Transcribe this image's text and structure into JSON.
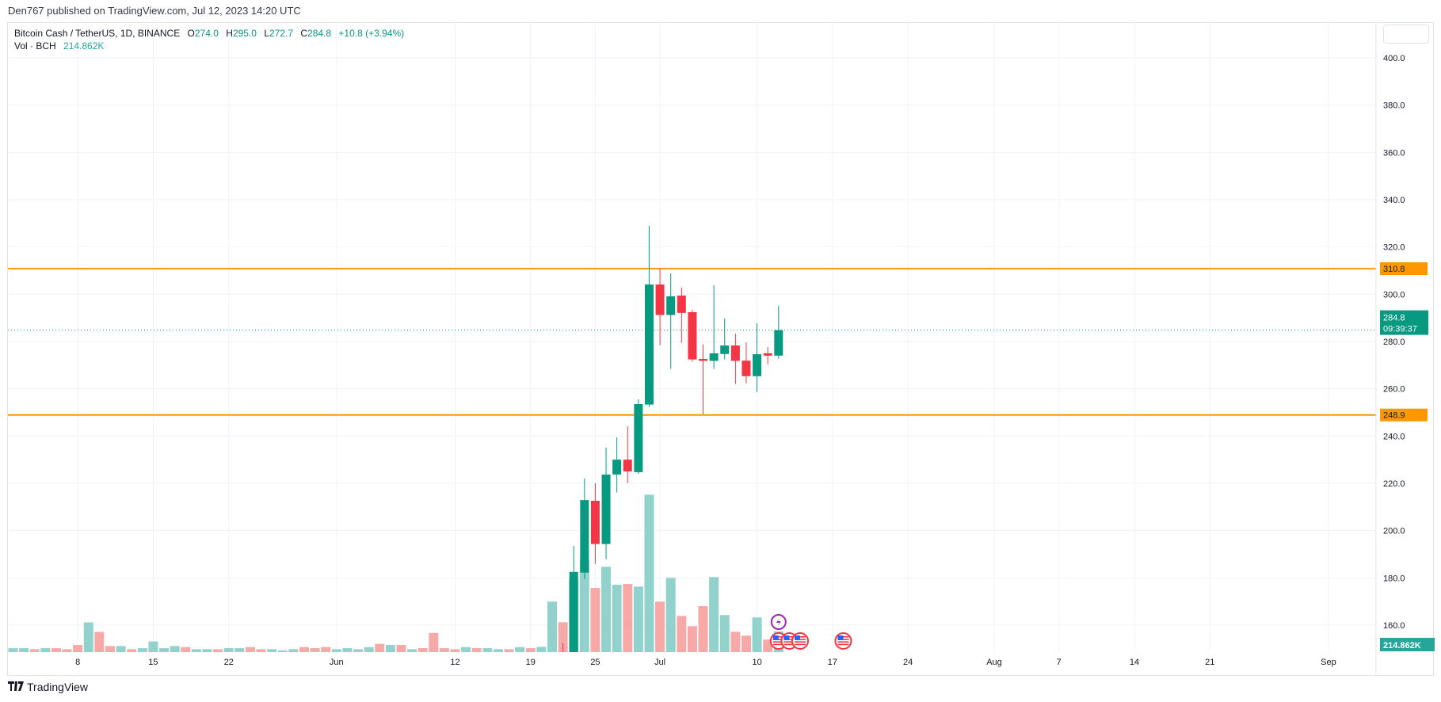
{
  "header": {
    "published": "Den767 published on TradingView.com, Jul 12, 2023 14:20 UTC"
  },
  "legend": {
    "symbol": "Bitcoin Cash / TetherUS, 1D, BINANCE",
    "open_label": "O",
    "open": "274.0",
    "high_label": "H",
    "high": "295.0",
    "low_label": "L",
    "low": "272.7",
    "close_label": "C",
    "close": "284.8",
    "change": "+10.8 (+3.94%)",
    "vol_label": "Vol · BCH",
    "vol_value": "214.862K"
  },
  "footer": {
    "logo_mark": "17",
    "brand": "TradingView"
  },
  "colors": {
    "up": "#089981",
    "down": "#f23645",
    "vol_up": "#92d2cc",
    "vol_down": "#f7a9a7",
    "level": "#ff9800",
    "grid": "#f0f3fa"
  },
  "chart_data": {
    "type": "candlestick",
    "title": "",
    "y_axis": {
      "min": 149,
      "max": 400,
      "ticks": [
        "400.0",
        "380.0",
        "360.0",
        "340.0",
        "320.0",
        "300.0",
        "280.0",
        "260.0",
        "240.0",
        "220.0",
        "200.0",
        "180.0",
        "160.0"
      ]
    },
    "x_axis": {
      "range": [
        "2023-05-02",
        "2023-09-05"
      ],
      "ticks": [
        {
          "d": "2023-05-08",
          "label": "8"
        },
        {
          "d": "2023-05-15",
          "label": "15"
        },
        {
          "d": "2023-05-22",
          "label": "22"
        },
        {
          "d": "2023-06-01",
          "label": "Jun"
        },
        {
          "d": "2023-06-12",
          "label": "12"
        },
        {
          "d": "2023-06-19",
          "label": "19"
        },
        {
          "d": "2023-06-25",
          "label": "25"
        },
        {
          "d": "2023-07-01",
          "label": "Jul"
        },
        {
          "d": "2023-07-10",
          "label": "10"
        },
        {
          "d": "2023-07-17",
          "label": "17"
        },
        {
          "d": "2023-07-24",
          "label": "24"
        },
        {
          "d": "2023-08-01",
          "label": "Aug"
        },
        {
          "d": "2023-08-07",
          "label": "7"
        },
        {
          "d": "2023-08-14",
          "label": "14"
        },
        {
          "d": "2023-08-21",
          "label": "21"
        },
        {
          "d": "2023-09-01",
          "label": "Sep"
        }
      ]
    },
    "grid": true,
    "levels": [
      {
        "price": 310.8,
        "label": "310.8"
      },
      {
        "price": 248.9,
        "label": "248.9"
      }
    ],
    "last_price": {
      "price": 284.8,
      "label": "284.8",
      "countdown": "09:39:37"
    },
    "volume_last_label": "214.862K",
    "candles": [
      {
        "d": "2023-06-22",
        "o": 148,
        "h": 152.4,
        "l": 138,
        "c": 141
      },
      {
        "d": "2023-06-23",
        "o": 145,
        "h": 193.5,
        "l": 141,
        "c": 182.5
      },
      {
        "d": "2023-06-24",
        "o": 182.2,
        "h": 222.0,
        "l": 179.5,
        "c": 212.9
      },
      {
        "d": "2023-06-25",
        "o": 212.6,
        "h": 220.0,
        "l": 185.9,
        "c": 194.3
      },
      {
        "d": "2023-06-26",
        "o": 194.3,
        "h": 235.1,
        "l": 187.9,
        "c": 223.7
      },
      {
        "d": "2023-06-27",
        "o": 223.7,
        "h": 239.4,
        "l": 216.1,
        "c": 230.0
      },
      {
        "d": "2023-06-28",
        "o": 230.0,
        "h": 244.1,
        "l": 220.0,
        "c": 225.0
      },
      {
        "d": "2023-06-29",
        "o": 224.7,
        "h": 255.5,
        "l": 224.0,
        "c": 253.5
      },
      {
        "d": "2023-06-30",
        "o": 253.3,
        "h": 328.9,
        "l": 252.3,
        "c": 304.1
      },
      {
        "d": "2023-07-01",
        "o": 304.1,
        "h": 310.8,
        "l": 278.4,
        "c": 291.2
      },
      {
        "d": "2023-07-02",
        "o": 291.2,
        "h": 308.8,
        "l": 268.4,
        "c": 299.1
      },
      {
        "d": "2023-07-03",
        "o": 299.4,
        "h": 302.8,
        "l": 279.4,
        "c": 292.1
      },
      {
        "d": "2023-07-04",
        "o": 292.4,
        "h": 293.4,
        "l": 271.4,
        "c": 272.4
      },
      {
        "d": "2023-07-05",
        "o": 272.6,
        "h": 278.8,
        "l": 249.2,
        "c": 271.8
      },
      {
        "d": "2023-07-06",
        "o": 271.8,
        "h": 303.8,
        "l": 268.4,
        "c": 275.0
      },
      {
        "d": "2023-07-07",
        "o": 274.7,
        "h": 289.7,
        "l": 272.4,
        "c": 278.3
      },
      {
        "d": "2023-07-08",
        "o": 278.3,
        "h": 283.3,
        "l": 262.0,
        "c": 271.8
      },
      {
        "d": "2023-07-09",
        "o": 271.9,
        "h": 279.6,
        "l": 262.3,
        "c": 265.3
      },
      {
        "d": "2023-07-10",
        "o": 265.3,
        "h": 287.7,
        "l": 258.6,
        "c": 274.6
      },
      {
        "d": "2023-07-11",
        "o": 275.0,
        "h": 277.6,
        "l": 270.3,
        "c": 274.0
      },
      {
        "d": "2023-07-12",
        "o": 274.0,
        "h": 295.0,
        "l": 272.7,
        "c": 284.8
      }
    ],
    "volume_unit": "K BCH",
    "volume": [
      {
        "d": "2023-05-02",
        "v": 41,
        "dir": "up"
      },
      {
        "d": "2023-05-03",
        "v": 41,
        "dir": "up"
      },
      {
        "d": "2023-05-04",
        "v": 30,
        "dir": "down"
      },
      {
        "d": "2023-05-05",
        "v": 41,
        "dir": "up"
      },
      {
        "d": "2023-05-06",
        "v": 41,
        "dir": "down"
      },
      {
        "d": "2023-05-07",
        "v": 30,
        "dir": "down"
      },
      {
        "d": "2023-05-08",
        "v": 74,
        "dir": "down"
      },
      {
        "d": "2023-05-09",
        "v": 310,
        "dir": "up"
      },
      {
        "d": "2023-05-10",
        "v": 210,
        "dir": "down"
      },
      {
        "d": "2023-05-11",
        "v": 63,
        "dir": "down"
      },
      {
        "d": "2023-05-12",
        "v": 63,
        "dir": "up"
      },
      {
        "d": "2023-05-13",
        "v": 30,
        "dir": "down"
      },
      {
        "d": "2023-05-14",
        "v": 41,
        "dir": "up"
      },
      {
        "d": "2023-05-15",
        "v": 111,
        "dir": "up"
      },
      {
        "d": "2023-05-16",
        "v": 41,
        "dir": "up"
      },
      {
        "d": "2023-05-17",
        "v": 63,
        "dir": "up"
      },
      {
        "d": "2023-05-18",
        "v": 52,
        "dir": "down"
      },
      {
        "d": "2023-05-19",
        "v": 30,
        "dir": "up"
      },
      {
        "d": "2023-05-20",
        "v": 30,
        "dir": "up"
      },
      {
        "d": "2023-05-21",
        "v": 30,
        "dir": "down"
      },
      {
        "d": "2023-05-22",
        "v": 41,
        "dir": "up"
      },
      {
        "d": "2023-05-23",
        "v": 41,
        "dir": "up"
      },
      {
        "d": "2023-05-24",
        "v": 52,
        "dir": "down"
      },
      {
        "d": "2023-05-25",
        "v": 30,
        "dir": "down"
      },
      {
        "d": "2023-05-26",
        "v": 30,
        "dir": "up"
      },
      {
        "d": "2023-05-27",
        "v": 18,
        "dir": "up"
      },
      {
        "d": "2023-05-28",
        "v": 30,
        "dir": "up"
      },
      {
        "d": "2023-05-29",
        "v": 52,
        "dir": "down"
      },
      {
        "d": "2023-05-30",
        "v": 41,
        "dir": "down"
      },
      {
        "d": "2023-05-31",
        "v": 52,
        "dir": "down"
      },
      {
        "d": "2023-06-01",
        "v": 30,
        "dir": "up"
      },
      {
        "d": "2023-06-02",
        "v": 41,
        "dir": "up"
      },
      {
        "d": "2023-06-03",
        "v": 30,
        "dir": "up"
      },
      {
        "d": "2023-06-04",
        "v": 52,
        "dir": "up"
      },
      {
        "d": "2023-06-05",
        "v": 85,
        "dir": "down"
      },
      {
        "d": "2023-06-06",
        "v": 74,
        "dir": "up"
      },
      {
        "d": "2023-06-07",
        "v": 74,
        "dir": "down"
      },
      {
        "d": "2023-06-08",
        "v": 30,
        "dir": "up"
      },
      {
        "d": "2023-06-09",
        "v": 41,
        "dir": "down"
      },
      {
        "d": "2023-06-10",
        "v": 199,
        "dir": "down"
      },
      {
        "d": "2023-06-11",
        "v": 41,
        "dir": "down"
      },
      {
        "d": "2023-06-12",
        "v": 30,
        "dir": "down"
      },
      {
        "d": "2023-06-13",
        "v": 52,
        "dir": "up"
      },
      {
        "d": "2023-06-14",
        "v": 41,
        "dir": "down"
      },
      {
        "d": "2023-06-15",
        "v": 41,
        "dir": "up"
      },
      {
        "d": "2023-06-16",
        "v": 30,
        "dir": "up"
      },
      {
        "d": "2023-06-17",
        "v": 30,
        "dir": "down"
      },
      {
        "d": "2023-06-18",
        "v": 52,
        "dir": "up"
      },
      {
        "d": "2023-06-19",
        "v": 41,
        "dir": "down"
      },
      {
        "d": "2023-06-20",
        "v": 55,
        "dir": "up"
      },
      {
        "d": "2023-06-21",
        "v": 526,
        "dir": "up"
      },
      {
        "d": "2023-06-22",
        "v": 311,
        "dir": "down"
      },
      {
        "d": "2023-06-23",
        "v": 757,
        "dir": "up"
      },
      {
        "d": "2023-06-24",
        "v": 964,
        "dir": "up"
      },
      {
        "d": "2023-06-25",
        "v": 669,
        "dir": "down"
      },
      {
        "d": "2023-06-26",
        "v": 890,
        "dir": "up"
      },
      {
        "d": "2023-06-27",
        "v": 702,
        "dir": "up"
      },
      {
        "d": "2023-06-28",
        "v": 710,
        "dir": "down"
      },
      {
        "d": "2023-06-29",
        "v": 683,
        "dir": "up"
      },
      {
        "d": "2023-06-30",
        "v": 1641,
        "dir": "up"
      },
      {
        "d": "2023-07-01",
        "v": 526,
        "dir": "down"
      },
      {
        "d": "2023-07-02",
        "v": 774,
        "dir": "up"
      },
      {
        "d": "2023-07-03",
        "v": 377,
        "dir": "down"
      },
      {
        "d": "2023-07-04",
        "v": 270,
        "dir": "down"
      },
      {
        "d": "2023-07-05",
        "v": 479,
        "dir": "down"
      },
      {
        "d": "2023-07-06",
        "v": 782,
        "dir": "up"
      },
      {
        "d": "2023-07-07",
        "v": 386,
        "dir": "up"
      },
      {
        "d": "2023-07-08",
        "v": 212,
        "dir": "down"
      },
      {
        "d": "2023-07-09",
        "v": 171,
        "dir": "down"
      },
      {
        "d": "2023-07-10",
        "v": 361,
        "dir": "up"
      },
      {
        "d": "2023-07-11",
        "v": 130,
        "dir": "down"
      },
      {
        "d": "2023-07-12",
        "v": 214.862,
        "dir": "up"
      }
    ],
    "events": [
      {
        "d": "2023-07-12",
        "icon": "lightning-icon"
      },
      {
        "d": "2023-07-12",
        "icon": "us-flag-icon"
      },
      {
        "d": "2023-07-13",
        "icon": "us-flag-icon"
      },
      {
        "d": "2023-07-14",
        "icon": "us-flag-icon"
      },
      {
        "d": "2023-07-18",
        "icon": "us-flag-icon"
      }
    ]
  }
}
